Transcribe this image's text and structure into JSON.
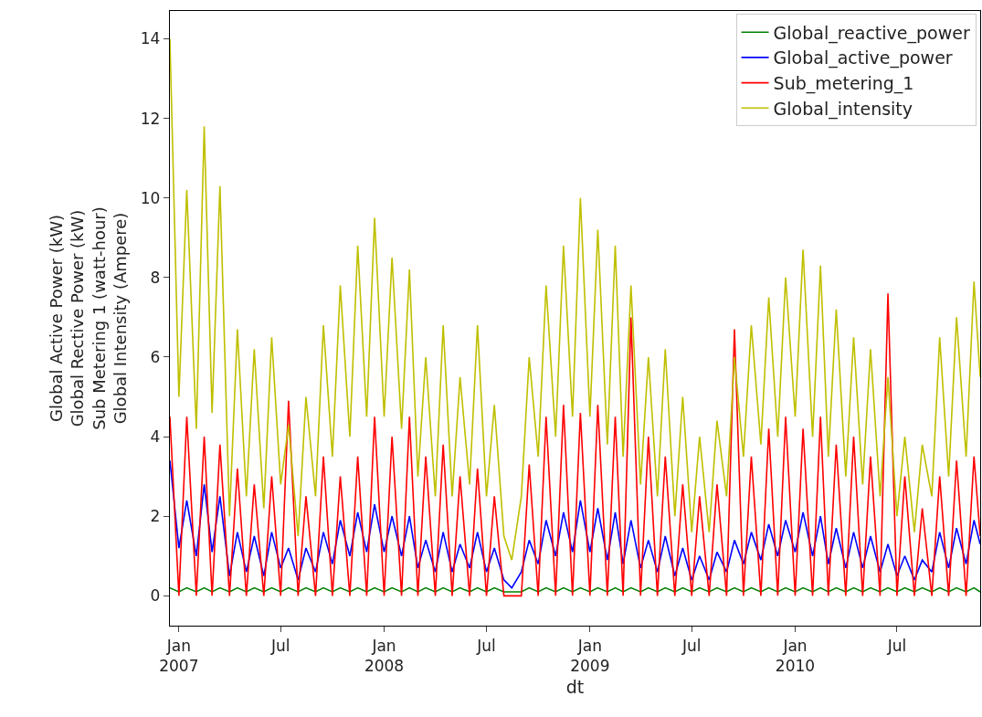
{
  "chart_data": {
    "type": "line",
    "xlabel": "dt",
    "ylabel": "Global Active Power (kW)\nGlobal Rective Power (kW)\nSub Metering 1 (watt-hour)\nGlobal Intensity (Ampere)",
    "x": [
      "2006-12-16",
      "2007-01-01",
      "2007-01-15",
      "2007-02-01",
      "2007-02-15",
      "2007-03-01",
      "2007-03-15",
      "2007-04-01",
      "2007-04-15",
      "2007-05-01",
      "2007-05-15",
      "2007-06-01",
      "2007-06-15",
      "2007-07-01",
      "2007-07-15",
      "2007-08-01",
      "2007-08-15",
      "2007-09-01",
      "2007-09-15",
      "2007-10-01",
      "2007-10-15",
      "2007-11-01",
      "2007-11-15",
      "2007-12-01",
      "2007-12-15",
      "2008-01-01",
      "2008-01-15",
      "2008-02-01",
      "2008-02-15",
      "2008-03-01",
      "2008-03-15",
      "2008-04-01",
      "2008-04-15",
      "2008-05-01",
      "2008-05-15",
      "2008-06-01",
      "2008-06-15",
      "2008-07-01",
      "2008-07-15",
      "2008-08-01",
      "2008-08-15",
      "2008-09-01",
      "2008-09-15",
      "2008-10-01",
      "2008-10-15",
      "2008-11-01",
      "2008-11-15",
      "2008-12-01",
      "2008-12-15",
      "2009-01-01",
      "2009-01-15",
      "2009-02-01",
      "2009-02-15",
      "2009-03-01",
      "2009-03-15",
      "2009-04-01",
      "2009-04-15",
      "2009-05-01",
      "2009-05-15",
      "2009-06-01",
      "2009-06-15",
      "2009-07-01",
      "2009-07-15",
      "2009-08-01",
      "2009-08-15",
      "2009-09-01",
      "2009-09-15",
      "2009-10-01",
      "2009-10-15",
      "2009-11-01",
      "2009-11-15",
      "2009-12-01",
      "2009-12-15",
      "2010-01-01",
      "2010-01-15",
      "2010-02-01",
      "2010-02-15",
      "2010-03-01",
      "2010-03-15",
      "2010-04-01",
      "2010-04-15",
      "2010-05-01",
      "2010-05-15",
      "2010-06-01",
      "2010-06-15",
      "2010-07-01",
      "2010-07-15",
      "2010-08-01",
      "2010-08-15",
      "2010-09-01",
      "2010-09-15",
      "2010-10-01",
      "2010-10-15",
      "2010-11-01",
      "2010-11-15",
      "2010-11-26"
    ],
    "xlim": [
      "2006-12-16",
      "2010-11-26"
    ],
    "xticks": [
      {
        "value": "2007-01-01",
        "label": "Jan\n2007"
      },
      {
        "value": "2007-07-01",
        "label": "Jul"
      },
      {
        "value": "2008-01-01",
        "label": "Jan\n2008"
      },
      {
        "value": "2008-07-01",
        "label": "Jul"
      },
      {
        "value": "2009-01-01",
        "label": "Jan\n2009"
      },
      {
        "value": "2009-07-01",
        "label": "Jul"
      },
      {
        "value": "2010-01-01",
        "label": "Jan\n2010"
      },
      {
        "value": "2010-07-01",
        "label": "Jul"
      }
    ],
    "ylim": [
      -0.75,
      14.7
    ],
    "yticks": [
      0,
      2,
      4,
      6,
      8,
      10,
      12,
      14
    ],
    "legend": "top right",
    "series": [
      {
        "name": "Global_reactive_power",
        "color": "#008000",
        "values": [
          0.2,
          0.1,
          0.2,
          0.1,
          0.2,
          0.1,
          0.2,
          0.1,
          0.2,
          0.1,
          0.2,
          0.1,
          0.2,
          0.1,
          0.2,
          0.1,
          0.2,
          0.1,
          0.2,
          0.1,
          0.2,
          0.1,
          0.2,
          0.1,
          0.2,
          0.1,
          0.2,
          0.1,
          0.2,
          0.1,
          0.2,
          0.1,
          0.2,
          0.1,
          0.2,
          0.1,
          0.2,
          0.1,
          0.2,
          0.1,
          0.1,
          0.1,
          0.2,
          0.1,
          0.2,
          0.1,
          0.2,
          0.1,
          0.2,
          0.1,
          0.2,
          0.1,
          0.2,
          0.1,
          0.2,
          0.1,
          0.2,
          0.1,
          0.2,
          0.1,
          0.2,
          0.1,
          0.2,
          0.1,
          0.2,
          0.1,
          0.2,
          0.1,
          0.2,
          0.1,
          0.2,
          0.1,
          0.2,
          0.1,
          0.2,
          0.1,
          0.2,
          0.1,
          0.2,
          0.1,
          0.2,
          0.1,
          0.2,
          0.1,
          0.2,
          0.1,
          0.2,
          0.1,
          0.2,
          0.1,
          0.2,
          0.1,
          0.2,
          0.1,
          0.2,
          0.1
        ]
      },
      {
        "name": "Global_active_power",
        "color": "#0000ff",
        "values": [
          3.4,
          1.2,
          2.4,
          1.0,
          2.8,
          1.1,
          2.5,
          0.5,
          1.6,
          0.6,
          1.5,
          0.5,
          1.6,
          0.7,
          1.2,
          0.4,
          1.2,
          0.6,
          1.6,
          0.8,
          1.9,
          1.0,
          2.1,
          1.1,
          2.3,
          1.1,
          2.0,
          1.0,
          2.0,
          0.7,
          1.4,
          0.6,
          1.6,
          0.6,
          1.3,
          0.7,
          1.6,
          0.6,
          1.2,
          0.4,
          0.2,
          0.6,
          1.4,
          0.8,
          1.9,
          1.0,
          2.1,
          1.1,
          2.4,
          1.1,
          2.2,
          0.9,
          2.1,
          0.8,
          1.9,
          0.7,
          1.4,
          0.6,
          1.5,
          0.5,
          1.2,
          0.4,
          1.0,
          0.4,
          1.1,
          0.6,
          1.4,
          0.8,
          1.6,
          0.9,
          1.8,
          1.0,
          1.9,
          1.1,
          2.1,
          1.0,
          2.0,
          0.8,
          1.7,
          0.7,
          1.6,
          0.7,
          1.5,
          0.6,
          1.3,
          0.5,
          1.0,
          0.4,
          0.9,
          0.6,
          1.6,
          0.7,
          1.7,
          0.8,
          1.9,
          1.3
        ]
      },
      {
        "name": "Sub_metering_1",
        "color": "#ff0000",
        "values": [
          4.5,
          0,
          4.5,
          0,
          4.0,
          0,
          3.8,
          0,
          3.2,
          0,
          2.8,
          0,
          3.0,
          0,
          4.9,
          0,
          2.5,
          0,
          3.5,
          0,
          3.0,
          0,
          3.5,
          0,
          4.5,
          0,
          4.0,
          0,
          4.5,
          0,
          3.5,
          0,
          3.8,
          0,
          3.0,
          0,
          3.2,
          0,
          2.5,
          0,
          0,
          0,
          3.3,
          0,
          4.5,
          0,
          4.8,
          0,
          4.6,
          0,
          4.8,
          0,
          4.5,
          0,
          7.0,
          0,
          4.0,
          0,
          3.5,
          0,
          2.8,
          0,
          2.5,
          0,
          2.8,
          0,
          6.7,
          0,
          3.5,
          0,
          4.2,
          0,
          4.5,
          0,
          4.2,
          0,
          4.5,
          0,
          3.8,
          0,
          4.0,
          0,
          3.5,
          0,
          7.6,
          0,
          3.0,
          0,
          2.2,
          0,
          3.0,
          0,
          3.4,
          0,
          3.5,
          1.5
        ]
      },
      {
        "name": "Global_intensity",
        "color": "#bfbf00",
        "values": [
          14.0,
          5.0,
          10.2,
          4.2,
          11.8,
          4.6,
          10.3,
          2.0,
          6.7,
          2.5,
          6.2,
          2.2,
          6.5,
          2.8,
          4.3,
          1.5,
          5.0,
          2.5,
          6.8,
          3.5,
          7.8,
          4.0,
          8.8,
          4.5,
          9.5,
          4.5,
          8.5,
          4.2,
          8.2,
          3.0,
          6.0,
          2.5,
          6.8,
          2.5,
          5.5,
          2.8,
          6.8,
          2.5,
          4.8,
          1.5,
          0.9,
          2.5,
          6.0,
          3.5,
          7.8,
          4.0,
          8.8,
          4.5,
          10.0,
          4.5,
          9.2,
          3.8,
          8.8,
          3.5,
          7.8,
          2.8,
          6.0,
          2.5,
          6.2,
          2.0,
          5.0,
          1.6,
          4.0,
          1.6,
          4.4,
          2.5,
          6.0,
          3.5,
          6.8,
          3.8,
          7.5,
          4.0,
          8.0,
          4.5,
          8.7,
          4.0,
          8.3,
          3.5,
          7.2,
          3.0,
          6.5,
          2.8,
          6.2,
          2.5,
          5.5,
          2.0,
          4.0,
          1.6,
          3.8,
          2.5,
          6.5,
          3.0,
          7.0,
          3.5,
          7.9,
          5.5
        ]
      }
    ]
  }
}
